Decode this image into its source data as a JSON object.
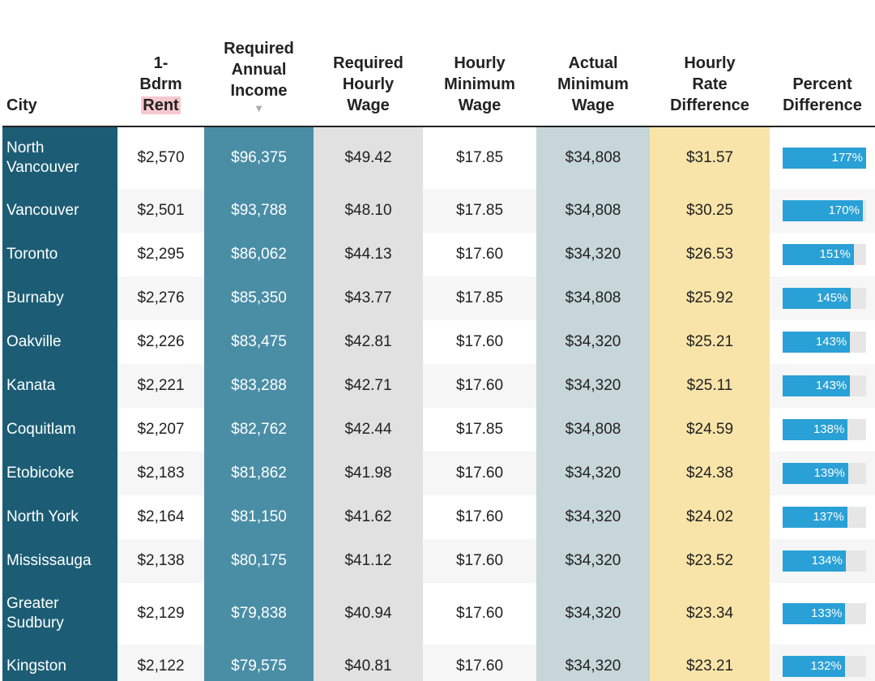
{
  "table": {
    "headers": [
      [
        "City"
      ],
      [
        "1-",
        "Bdrm",
        "Rent"
      ],
      [
        "Required",
        "Annual",
        "Income"
      ],
      [
        "Required",
        "Hourly",
        "Wage"
      ],
      [
        "Hourly",
        "Minimum",
        "Wage"
      ],
      [
        "Actual",
        "Minimum",
        "Wage"
      ],
      [
        "Hourly",
        "Rate",
        "Difference"
      ],
      [
        "Percent",
        "Difference"
      ]
    ],
    "rows": [
      {
        "cells": [
          "North Vancouver",
          "$2,570",
          "$96,375",
          "$49.42",
          "$17.85",
          "$34,808",
          "$31.57"
        ],
        "percent": {
          "value": 177,
          "label": "177%"
        }
      },
      {
        "cells": [
          "Vancouver",
          "$2,501",
          "$93,788",
          "$48.10",
          "$17.85",
          "$34,808",
          "$30.25"
        ],
        "percent": {
          "value": 170,
          "label": "170%"
        }
      },
      {
        "cells": [
          "Toronto",
          "$2,295",
          "$86,062",
          "$44.13",
          "$17.60",
          "$34,320",
          "$26.53"
        ],
        "percent": {
          "value": 151,
          "label": "151%"
        }
      },
      {
        "cells": [
          "Burnaby",
          "$2,276",
          "$85,350",
          "$43.77",
          "$17.85",
          "$34,808",
          "$25.92"
        ],
        "percent": {
          "value": 145,
          "label": "145%"
        }
      },
      {
        "cells": [
          "Oakville",
          "$2,226",
          "$83,475",
          "$42.81",
          "$17.60",
          "$34,320",
          "$25.21"
        ],
        "percent": {
          "value": 143,
          "label": "143%"
        }
      },
      {
        "cells": [
          "Kanata",
          "$2,221",
          "$83,288",
          "$42.71",
          "$17.60",
          "$34,320",
          "$25.11"
        ],
        "percent": {
          "value": 143,
          "label": "143%"
        }
      },
      {
        "cells": [
          "Coquitlam",
          "$2,207",
          "$82,762",
          "$42.44",
          "$17.85",
          "$34,808",
          "$24.59"
        ],
        "percent": {
          "value": 138,
          "label": "138%"
        }
      },
      {
        "cells": [
          "Etobicoke",
          "$2,183",
          "$81,862",
          "$41.98",
          "$17.60",
          "$34,320",
          "$24.38"
        ],
        "percent": {
          "value": 139,
          "label": "139%"
        }
      },
      {
        "cells": [
          "North York",
          "$2,164",
          "$81,150",
          "$41.62",
          "$17.60",
          "$34,320",
          "$24.02"
        ],
        "percent": {
          "value": 137,
          "label": "137%"
        }
      },
      {
        "cells": [
          "Mississauga",
          "$2,138",
          "$80,175",
          "$41.12",
          "$17.60",
          "$34,320",
          "$23.52"
        ],
        "percent": {
          "value": 134,
          "label": "134%"
        }
      },
      {
        "cells": [
          "Greater Sudbury",
          "$2,129",
          "$79,838",
          "$40.94",
          "$17.60",
          "$34,320",
          "$23.34"
        ],
        "percent": {
          "value": 133,
          "label": "133%"
        }
      },
      {
        "cells": [
          "Kingston",
          "$2,122",
          "$79,575",
          "$40.81",
          "$17.60",
          "$34,320",
          "$23.21"
        ],
        "percent": {
          "value": 132,
          "label": "132%"
        }
      }
    ]
  }
}
